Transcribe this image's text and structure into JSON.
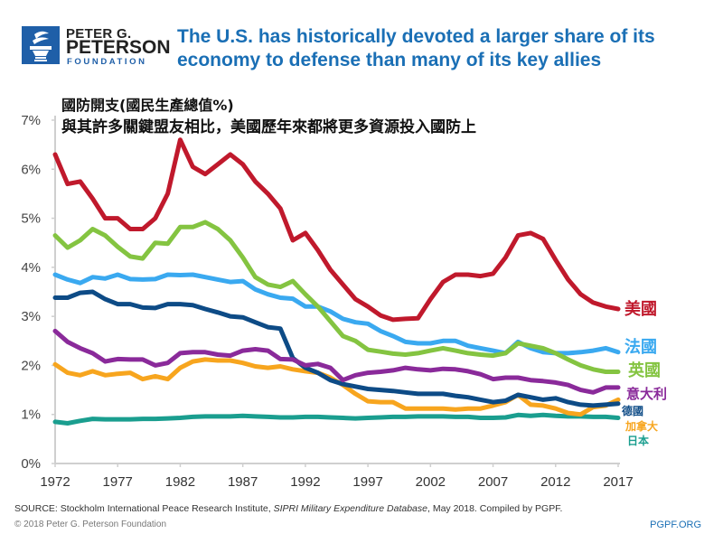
{
  "logo": {
    "line1": "PETER G.",
    "line2": "PETERSON",
    "line3": "FOUNDATION",
    "icon": "torch-icon"
  },
  "headline": "The U.S. has historically devoted a larger share of its economy to defense than many of its key allies",
  "zh_title_line1": "國防開支(國民生產總值%)",
  "zh_title_line2": "與其許多關鍵盟友相比，美國歷年來都將更多資源投入國防上",
  "footer": {
    "source_prefix": "SOURCE: Stockholm International Peace Research Institute, ",
    "source_italic": "SIPRI Military Expenditure Database",
    "source_suffix": ", May 2018. Compiled by PGPF.",
    "copyright": "© 2018 Peter G. Peterson Foundation",
    "site": "PGPF.ORG"
  },
  "chart_data": {
    "type": "line",
    "title": "國防開支(國民生產總值%)",
    "xlabel": "",
    "ylabel": "",
    "xlim": [
      1972,
      2017
    ],
    "ylim": [
      0,
      7
    ],
    "x_ticks": [
      "1972",
      "1977",
      "1982",
      "1987",
      "1992",
      "1997",
      "2002",
      "2007",
      "2012",
      "2017"
    ],
    "y_ticks": [
      "0%",
      "1%",
      "2%",
      "3%",
      "4%",
      "5%",
      "6%",
      "7%"
    ],
    "grid": false,
    "legend": "right (labels at line ends)",
    "x": [
      1972,
      1973,
      1974,
      1975,
      1976,
      1977,
      1978,
      1979,
      1980,
      1981,
      1982,
      1983,
      1984,
      1985,
      1986,
      1987,
      1988,
      1989,
      1990,
      1991,
      1992,
      1993,
      1994,
      1995,
      1996,
      1997,
      1998,
      1999,
      2000,
      2001,
      2002,
      2003,
      2004,
      2005,
      2006,
      2007,
      2008,
      2009,
      2010,
      2011,
      2012,
      2013,
      2014,
      2015,
      2016,
      2017
    ],
    "series": [
      {
        "name": "美國",
        "color": "#c0192c",
        "values": [
          6.3,
          5.7,
          5.75,
          5.4,
          5.0,
          5.0,
          4.78,
          4.78,
          5.0,
          5.5,
          6.6,
          6.05,
          5.9,
          6.1,
          6.3,
          6.1,
          5.75,
          5.5,
          5.2,
          4.55,
          4.7,
          4.35,
          3.95,
          3.65,
          3.35,
          3.2,
          3.02,
          2.93,
          2.95,
          2.96,
          3.35,
          3.7,
          3.85,
          3.85,
          3.82,
          3.87,
          4.2,
          4.65,
          4.7,
          4.58,
          4.15,
          3.75,
          3.45,
          3.28,
          3.2,
          3.15
        ]
      },
      {
        "name": "法國",
        "color": "#3aa9f0",
        "values": [
          3.85,
          3.75,
          3.68,
          3.8,
          3.77,
          3.85,
          3.76,
          3.75,
          3.76,
          3.85,
          3.84,
          3.85,
          3.8,
          3.75,
          3.7,
          3.72,
          3.55,
          3.45,
          3.38,
          3.36,
          3.2,
          3.2,
          3.1,
          2.95,
          2.88,
          2.85,
          2.7,
          2.6,
          2.48,
          2.45,
          2.45,
          2.5,
          2.5,
          2.4,
          2.35,
          2.3,
          2.25,
          2.48,
          2.35,
          2.27,
          2.25,
          2.25,
          2.27,
          2.3,
          2.35,
          2.27
        ]
      },
      {
        "name": "英國",
        "color": "#84c441",
        "values": [
          4.65,
          4.4,
          4.55,
          4.78,
          4.65,
          4.42,
          4.22,
          4.18,
          4.5,
          4.48,
          4.82,
          4.82,
          4.92,
          4.78,
          4.55,
          4.2,
          3.8,
          3.65,
          3.6,
          3.72,
          3.45,
          3.2,
          2.9,
          2.6,
          2.5,
          2.32,
          2.28,
          2.24,
          2.22,
          2.25,
          2.3,
          2.35,
          2.3,
          2.25,
          2.22,
          2.2,
          2.25,
          2.45,
          2.4,
          2.35,
          2.25,
          2.12,
          2.0,
          1.92,
          1.87,
          1.87
        ]
      },
      {
        "name": "意大利",
        "color": "#8a2a9a",
        "values": [
          2.7,
          2.48,
          2.35,
          2.25,
          2.08,
          2.13,
          2.12,
          2.12,
          2.0,
          2.05,
          2.25,
          2.27,
          2.27,
          2.22,
          2.2,
          2.3,
          2.33,
          2.3,
          2.13,
          2.12,
          2.0,
          2.03,
          1.95,
          1.7,
          1.8,
          1.85,
          1.87,
          1.9,
          1.95,
          1.92,
          1.9,
          1.93,
          1.92,
          1.88,
          1.82,
          1.72,
          1.75,
          1.75,
          1.7,
          1.68,
          1.65,
          1.6,
          1.5,
          1.45,
          1.55,
          1.55
        ]
      },
      {
        "name": "德國",
        "color": "#0d4b86",
        "values": [
          3.38,
          3.38,
          3.48,
          3.5,
          3.35,
          3.25,
          3.25,
          3.18,
          3.17,
          3.25,
          3.25,
          3.23,
          3.15,
          3.08,
          3.0,
          2.98,
          2.88,
          2.78,
          2.75,
          2.15,
          1.95,
          1.85,
          1.7,
          1.62,
          1.57,
          1.52,
          1.5,
          1.48,
          1.45,
          1.42,
          1.42,
          1.42,
          1.38,
          1.35,
          1.3,
          1.25,
          1.28,
          1.4,
          1.35,
          1.3,
          1.33,
          1.25,
          1.2,
          1.18,
          1.2,
          1.22
        ]
      },
      {
        "name": "加拿大",
        "color": "#f7a51e",
        "values": [
          2.02,
          1.85,
          1.8,
          1.88,
          1.8,
          1.83,
          1.85,
          1.72,
          1.78,
          1.72,
          1.95,
          2.08,
          2.12,
          2.1,
          2.1,
          2.05,
          1.98,
          1.95,
          1.98,
          1.92,
          1.88,
          1.85,
          1.75,
          1.6,
          1.42,
          1.27,
          1.25,
          1.25,
          1.12,
          1.12,
          1.12,
          1.12,
          1.1,
          1.12,
          1.12,
          1.18,
          1.25,
          1.4,
          1.2,
          1.18,
          1.12,
          1.03,
          1.0,
          1.15,
          1.18,
          1.3
        ]
      },
      {
        "name": "日本",
        "color": "#1a9e8f",
        "values": [
          0.85,
          0.82,
          0.87,
          0.91,
          0.9,
          0.9,
          0.9,
          0.91,
          0.91,
          0.92,
          0.93,
          0.95,
          0.96,
          0.96,
          0.96,
          0.97,
          0.96,
          0.95,
          0.94,
          0.94,
          0.95,
          0.95,
          0.94,
          0.93,
          0.92,
          0.93,
          0.94,
          0.95,
          0.95,
          0.96,
          0.96,
          0.96,
          0.95,
          0.95,
          0.93,
          0.93,
          0.94,
          0.99,
          0.97,
          0.99,
          0.97,
          0.96,
          0.96,
          0.95,
          0.95,
          0.93
        ]
      }
    ]
  }
}
